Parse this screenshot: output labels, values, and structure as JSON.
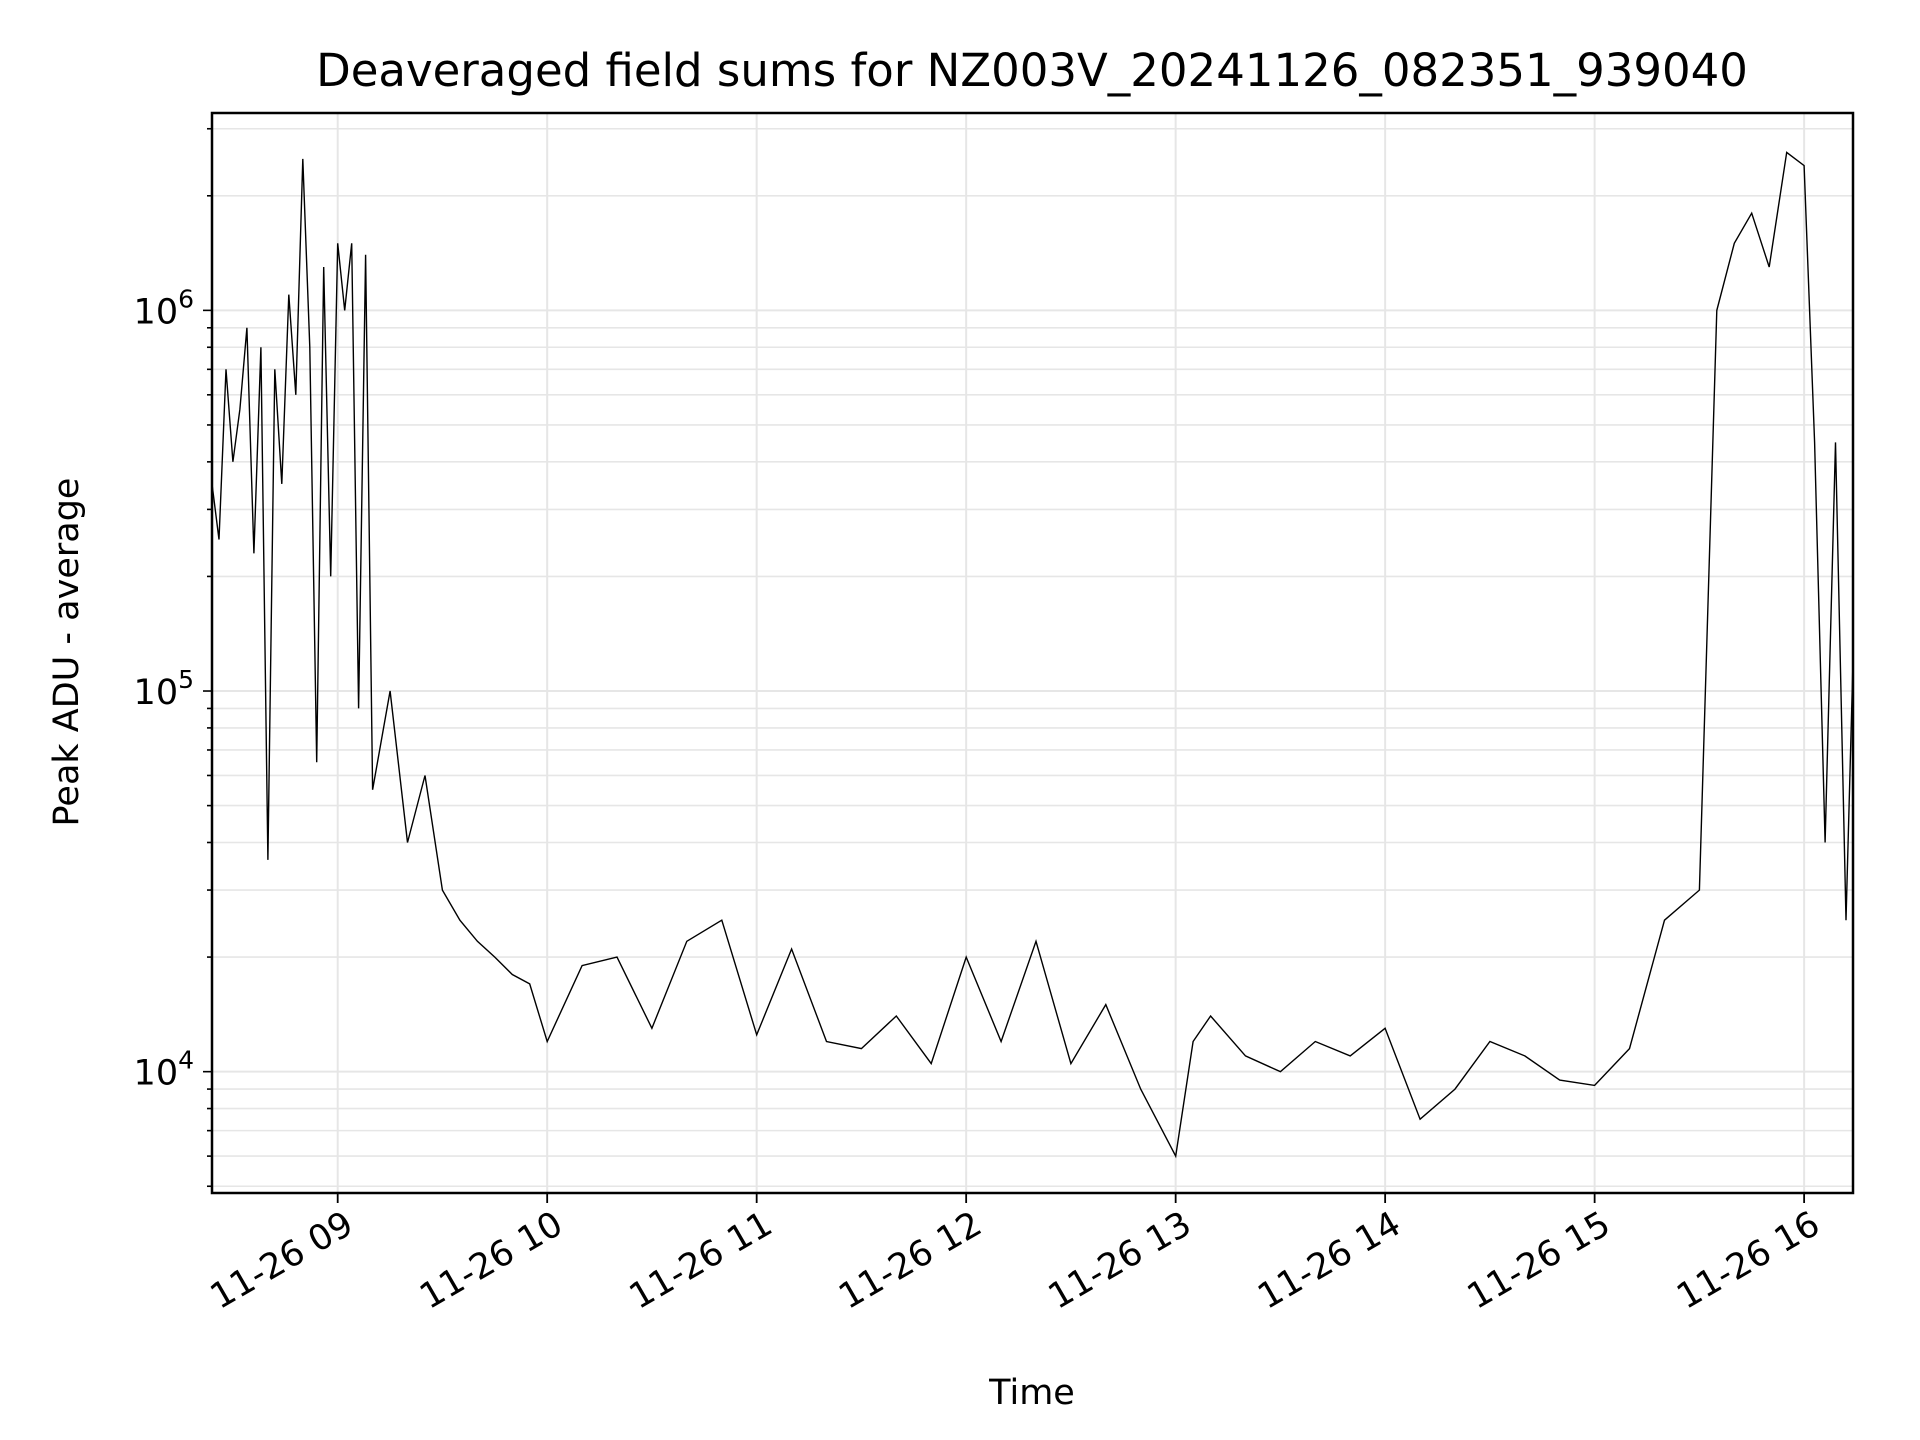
{
  "chart_data": {
    "type": "line",
    "title": "Deaveraged field sums for NZ003V_20241126_082351_939040",
    "xlabel": "Time",
    "ylabel": "Peak ADU - average",
    "y_scale": "log",
    "ylim": [
      4800,
      3300000
    ],
    "xlim": [
      "2024-11-26 08:24:00",
      "2024-11-26 16:14:00"
    ],
    "grid": true,
    "line_color": "#000000",
    "grid_color": "#e6e6e6",
    "x_ticks": [
      {
        "time": "2024-11-26 09:00",
        "label": "11-26 09"
      },
      {
        "time": "2024-11-26 10:00",
        "label": "11-26 10"
      },
      {
        "time": "2024-11-26 11:00",
        "label": "11-26 11"
      },
      {
        "time": "2024-11-26 12:00",
        "label": "11-26 12"
      },
      {
        "time": "2024-11-26 13:00",
        "label": "11-26 13"
      },
      {
        "time": "2024-11-26 14:00",
        "label": "11-26 14"
      },
      {
        "time": "2024-11-26 15:00",
        "label": "11-26 15"
      },
      {
        "time": "2024-11-26 16:00",
        "label": "11-26 16"
      }
    ],
    "y_ticks": [
      {
        "value": 10000,
        "base": "10",
        "exp": "4"
      },
      {
        "value": 100000,
        "base": "10",
        "exp": "5"
      },
      {
        "value": 1000000,
        "base": "10",
        "exp": "6"
      }
    ],
    "series": [
      {
        "x": [
          "08:24",
          "08:26",
          "08:28",
          "08:30",
          "08:32",
          "08:34",
          "08:36",
          "08:38",
          "08:40",
          "08:42",
          "08:44",
          "08:46",
          "08:48",
          "08:50",
          "08:52",
          "08:54",
          "08:56",
          "08:58",
          "09:00",
          "09:02",
          "09:04",
          "09:06",
          "09:08",
          "09:10",
          "09:15",
          "09:20",
          "09:25",
          "09:30",
          "09:35",
          "09:40",
          "09:45",
          "09:50",
          "09:55",
          "10:00",
          "10:10",
          "10:20",
          "10:30",
          "10:40",
          "10:50",
          "11:00",
          "11:10",
          "11:20",
          "11:30",
          "11:40",
          "11:50",
          "12:00",
          "12:10",
          "12:20",
          "12:30",
          "12:40",
          "12:50",
          "13:00",
          "13:05",
          "13:10",
          "13:20",
          "13:30",
          "13:40",
          "13:50",
          "14:00",
          "14:10",
          "14:20",
          "14:30",
          "14:40",
          "14:50",
          "15:00",
          "15:10",
          "15:20",
          "15:30",
          "15:35",
          "15:40",
          "15:45",
          "15:50",
          "15:55",
          "16:00",
          "16:03",
          "16:06",
          "16:09",
          "16:12",
          "16:14"
        ],
        "y": [
          350000,
          250000,
          700000,
          400000,
          550000,
          900000,
          230000,
          800000,
          36000,
          700000,
          350000,
          1100000,
          600000,
          2500000,
          800000,
          65000,
          1300000,
          200000,
          1500000,
          1000000,
          1500000,
          90000,
          1400000,
          55000,
          100000,
          40000,
          60000,
          30000,
          25000,
          22000,
          20000,
          18000,
          17000,
          12000,
          19000,
          20000,
          13000,
          22000,
          25000,
          12500,
          21000,
          12000,
          11500,
          14000,
          10500,
          20000,
          12000,
          22000,
          10500,
          15000,
          9000,
          6000,
          12000,
          14000,
          11000,
          10000,
          12000,
          11000,
          13000,
          7500,
          9000,
          12000,
          11000,
          9500,
          9200,
          11500,
          25000,
          30000,
          1000000,
          1500000,
          1800000,
          1300000,
          2600000,
          2400000,
          450000,
          40000,
          450000,
          25000,
          120000
        ]
      }
    ]
  }
}
